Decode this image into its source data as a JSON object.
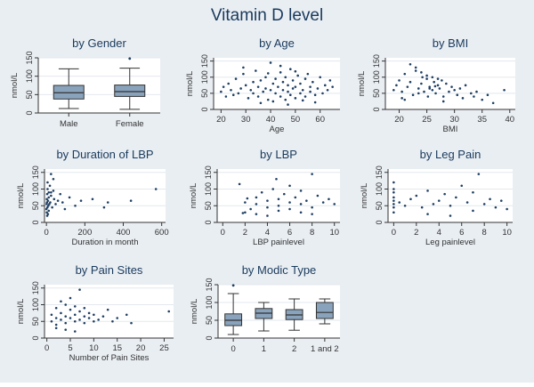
{
  "figure_title": "Vitamin D level",
  "chart_data": [
    {
      "type": "box",
      "title": "by Gender",
      "ylabel": "nmol/L",
      "xlabel": "",
      "ylim": [
        0,
        150
      ],
      "yticks": [
        0,
        50,
        100,
        150
      ],
      "categories": [
        "Male",
        "Female"
      ],
      "boxes": [
        {
          "min": 12,
          "q1": 38,
          "median": 55,
          "q3": 75,
          "max": 120,
          "outliers": []
        },
        {
          "min": 10,
          "q1": 45,
          "median": 58,
          "q3": 76,
          "max": 122,
          "outliers": [
            148
          ]
        }
      ]
    },
    {
      "type": "scatter",
      "title": "by Age",
      "ylabel": "nmol/L",
      "xlabel": "Age",
      "xlim": [
        17,
        68
      ],
      "ylim": [
        0,
        160
      ],
      "xticks": [
        20,
        30,
        40,
        50,
        60
      ],
      "yticks": [
        0,
        50,
        100,
        150
      ],
      "ytick_labels": [
        "0",
        "50",
        "100",
        "150"
      ],
      "x": [
        20,
        21,
        22,
        23,
        24,
        25,
        26,
        27,
        28,
        29,
        30,
        31,
        32,
        33,
        33,
        34,
        35,
        35,
        36,
        37,
        38,
        38,
        39,
        40,
        40,
        41,
        42,
        42,
        43,
        44,
        44,
        45,
        45,
        46,
        46,
        47,
        47,
        48,
        48,
        49,
        49,
        50,
        50,
        51,
        52,
        52,
        53,
        54,
        54,
        55,
        56,
        56,
        57,
        58,
        59,
        60,
        61,
        62,
        63,
        64,
        65,
        36,
        41,
        47,
        53,
        58,
        29,
        44,
        50,
        39
      ],
      "y": [
        55,
        70,
        40,
        80,
        60,
        45,
        95,
        50,
        65,
        110,
        75,
        35,
        60,
        85,
        50,
        120,
        40,
        70,
        90,
        55,
        65,
        100,
        30,
        145,
        60,
        80,
        50,
        95,
        70,
        40,
        115,
        60,
        85,
        30,
        100,
        55,
        75,
        45,
        125,
        65,
        90,
        35,
        70,
        105,
        50,
        80,
        60,
        40,
        95,
        110,
        55,
        70,
        85,
        45,
        65,
        100,
        50,
        75,
        60,
        90,
        70,
        20,
        25,
        15,
        28,
        22,
        130,
        135,
        118,
        112
      ]
    },
    {
      "type": "scatter",
      "title": "by BMI",
      "ylabel": "nmol/L",
      "xlabel": "BMI",
      "xlim": [
        17.5,
        41
      ],
      "ylim": [
        0,
        160
      ],
      "xticks": [
        20,
        25,
        30,
        35,
        40
      ],
      "yticks": [
        0,
        50,
        100,
        150
      ],
      "ytick_labels": [
        "0",
        "50",
        "100",
        "150"
      ],
      "x": [
        19,
        19.5,
        20,
        20.5,
        21,
        21.5,
        22,
        22.5,
        23,
        23.5,
        24,
        24.2,
        24.5,
        25,
        25.2,
        25.5,
        26,
        26.3,
        26.6,
        27,
        27.3,
        27.7,
        28,
        28.5,
        29,
        29.5,
        30,
        30.5,
        31,
        31.5,
        32,
        33,
        33.5,
        34,
        35,
        36,
        37,
        39,
        22,
        23,
        24,
        25,
        26,
        27,
        28,
        21,
        20.5,
        23.5,
        25.5,
        26.5
      ],
      "y": [
        60,
        75,
        90,
        55,
        110,
        70,
        85,
        45,
        120,
        65,
        80,
        100,
        55,
        95,
        40,
        70,
        60,
        85,
        50,
        75,
        65,
        90,
        40,
        80,
        55,
        70,
        60,
        45,
        65,
        35,
        75,
        50,
        40,
        55,
        30,
        45,
        20,
        60,
        140,
        130,
        115,
        105,
        100,
        95,
        25,
        30,
        35,
        50,
        65,
        72
      ]
    },
    {
      "type": "scatter",
      "title": "by Duration of LBP",
      "ylabel": "nmol/L",
      "xlabel": "Duration in month",
      "xlim": [
        -10,
        620
      ],
      "ylim": [
        0,
        160
      ],
      "xticks": [
        0,
        200,
        400,
        600
      ],
      "yticks": [
        0,
        50,
        100,
        150
      ],
      "ytick_labels": [
        "0",
        "50",
        "100",
        "150"
      ],
      "x": [
        0,
        1,
        2,
        3,
        4,
        5,
        6,
        6,
        8,
        10,
        12,
        12,
        15,
        18,
        20,
        24,
        24,
        30,
        36,
        40,
        48,
        60,
        72,
        84,
        96,
        120,
        150,
        180,
        240,
        300,
        320,
        440,
        570,
        2,
        4,
        8,
        12,
        24,
        36
      ],
      "y": [
        40,
        55,
        70,
        60,
        85,
        45,
        100,
        120,
        65,
        50,
        90,
        75,
        55,
        110,
        60,
        80,
        145,
        45,
        95,
        70,
        55,
        65,
        85,
        60,
        40,
        75,
        50,
        65,
        70,
        45,
        60,
        65,
        100,
        30,
        20,
        25,
        35,
        90,
        130
      ]
    },
    {
      "type": "scatter",
      "title": "by LBP",
      "ylabel": "nmol/L",
      "xlabel": "LBP painlevel",
      "xlim": [
        -0.5,
        10.5
      ],
      "ylim": [
        0,
        160
      ],
      "xticks": [
        0,
        2,
        4,
        6,
        8,
        10
      ],
      "yticks": [
        0,
        50,
        100,
        150
      ],
      "ytick_labels": [
        "0",
        "50",
        "100",
        "150"
      ],
      "x": [
        1.5,
        2,
        2.5,
        3,
        3,
        3.5,
        4,
        4,
        4.5,
        5,
        5,
        5.5,
        6,
        6,
        6.5,
        7,
        7,
        7.5,
        8,
        8,
        8.5,
        9,
        9.5,
        10,
        2,
        3,
        4,
        5,
        6,
        7,
        8,
        1.8,
        2.2,
        4.8
      ],
      "y": [
        115,
        60,
        40,
        75,
        55,
        90,
        65,
        45,
        100,
        70,
        50,
        85,
        60,
        110,
        75,
        55,
        95,
        65,
        145,
        45,
        80,
        60,
        70,
        55,
        30,
        25,
        20,
        35,
        40,
        30,
        25,
        28,
        72,
        130
      ]
    },
    {
      "type": "scatter",
      "title": "by Leg Pain",
      "ylabel": "nmol/L",
      "xlabel": "Leg painlevel",
      "xlim": [
        -0.5,
        10.5
      ],
      "ylim": [
        0,
        160
      ],
      "xticks": [
        0,
        2,
        4,
        6,
        8,
        10
      ],
      "yticks": [
        0,
        50,
        100,
        150
      ],
      "ytick_labels": [
        "0",
        "50",
        "100",
        "150"
      ],
      "x": [
        0,
        0,
        0,
        0,
        0,
        0,
        0,
        0,
        0.5,
        1,
        1.5,
        2,
        2.5,
        3,
        3.5,
        4,
        4.5,
        5,
        5.5,
        6,
        6.5,
        7,
        7.5,
        8,
        8.5,
        9,
        9.5,
        10,
        3,
        5,
        7
      ],
      "y": [
        30,
        45,
        55,
        65,
        75,
        90,
        100,
        120,
        60,
        50,
        70,
        80,
        45,
        95,
        55,
        65,
        85,
        50,
        75,
        110,
        60,
        90,
        145,
        55,
        70,
        45,
        65,
        40,
        25,
        20,
        35
      ]
    },
    {
      "type": "scatter",
      "title": "by Pain Sites",
      "ylabel": "nmol/L",
      "xlabel": "Number of Pain Sites",
      "xlim": [
        -0.5,
        27
      ],
      "ylim": [
        0,
        160
      ],
      "xticks": [
        0,
        5,
        10,
        15,
        20,
        25
      ],
      "yticks": [
        0,
        50,
        100,
        150
      ],
      "ytick_labels": [
        "0",
        "50",
        "100",
        "150"
      ],
      "x": [
        1,
        1,
        2,
        2,
        2,
        3,
        3,
        3,
        4,
        4,
        4,
        5,
        5,
        5,
        6,
        6,
        6,
        7,
        7,
        7,
        8,
        8,
        8,
        9,
        9,
        10,
        10,
        11,
        12,
        13,
        14,
        15,
        17,
        18,
        26,
        2,
        4,
        6
      ],
      "y": [
        50,
        70,
        40,
        60,
        90,
        55,
        75,
        110,
        45,
        65,
        100,
        60,
        85,
        120,
        50,
        70,
        95,
        55,
        80,
        145,
        45,
        65,
        90,
        60,
        75,
        50,
        70,
        55,
        65,
        85,
        50,
        60,
        70,
        45,
        80,
        30,
        25,
        20
      ]
    },
    {
      "type": "box",
      "title": "by Modic Type",
      "ylabel": "nmol/L",
      "xlabel": "",
      "ylim": [
        0,
        150
      ],
      "yticks": [
        0,
        50,
        100,
        150
      ],
      "categories": [
        "0",
        "1",
        "2",
        "1 and 2"
      ],
      "boxes": [
        {
          "min": 10,
          "q1": 35,
          "median": 50,
          "q3": 68,
          "max": 125,
          "outliers": [
            148
          ]
        },
        {
          "min": 20,
          "q1": 55,
          "median": 70,
          "q3": 83,
          "max": 100,
          "outliers": []
        },
        {
          "min": 22,
          "q1": 52,
          "median": 65,
          "q3": 80,
          "max": 110,
          "outliers": []
        },
        {
          "min": 40,
          "q1": 55,
          "median": 72,
          "q3": 100,
          "max": 110,
          "outliers": []
        }
      ]
    }
  ]
}
